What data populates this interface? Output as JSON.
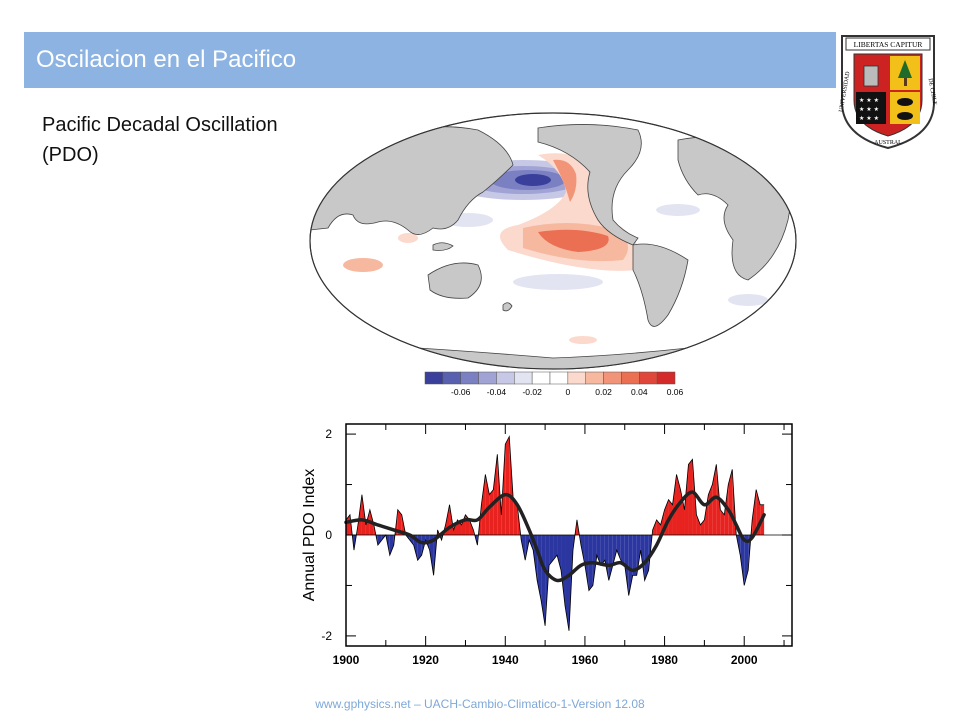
{
  "slide": {
    "title": "Oscilacion en el Pacifico",
    "subtitle": "Pacific Decadal Oscillation (PDO)",
    "footer": "www.gphysics.net – UACH-Cambio-Climatico-1-Version 12.08"
  },
  "logo": {
    "banner_top": "LIBERTAS CAPITUR",
    "left_text": "UNIVERSIDAD",
    "right_text": "DE CHILE",
    "bottom_text": "AUSTRAL"
  },
  "colors": {
    "title_bar": "#8db3e2",
    "positive": "#e8231f",
    "negative": "#2b36a0",
    "land": "#c8c8c8",
    "smooth_line": "#222222"
  },
  "colorbar": {
    "labels": [
      "-0.06",
      "-0.04",
      "-0.02",
      "0",
      "0.02",
      "0.04",
      "0.06"
    ],
    "colors": [
      "#3a3f9c",
      "#5a60b0",
      "#7b80c2",
      "#a0a3d4",
      "#c6c8e6",
      "#e3e4f2",
      "#ffffff",
      "#ffffff",
      "#fbd9cc",
      "#f7b8a0",
      "#f19478",
      "#ea6f53",
      "#e0473a",
      "#d42a2a"
    ]
  },
  "chart_data": {
    "type": "area",
    "ylabel": "Annual PDO Index",
    "xlabel": "",
    "xlim": [
      1900,
      2012
    ],
    "ylim": [
      -2.2,
      2.2
    ],
    "xticks": [
      1900,
      1920,
      1940,
      1960,
      1980,
      2000
    ],
    "yticks": [
      -2,
      0,
      2
    ],
    "series": [
      {
        "values": [
          [
            1900,
            0.3
          ],
          [
            1901,
            0.4
          ],
          [
            1902,
            -0.3
          ],
          [
            1903,
            0.2
          ],
          [
            1904,
            0.8
          ],
          [
            1905,
            0.2
          ],
          [
            1906,
            0.5
          ],
          [
            1907,
            0.2
          ],
          [
            1908,
            -0.2
          ],
          [
            1909,
            -0.1
          ],
          [
            1910,
            0.0
          ],
          [
            1911,
            -0.4
          ],
          [
            1912,
            -0.2
          ],
          [
            1913,
            0.5
          ],
          [
            1914,
            0.4
          ],
          [
            1915,
            0.0
          ],
          [
            1916,
            -0.1
          ],
          [
            1917,
            -0.2
          ],
          [
            1918,
            -0.5
          ],
          [
            1919,
            -0.4
          ],
          [
            1920,
            -0.1
          ],
          [
            1921,
            -0.3
          ],
          [
            1922,
            -0.8
          ],
          [
            1923,
            0.1
          ],
          [
            1924,
            -0.1
          ],
          [
            1925,
            0.2
          ],
          [
            1926,
            0.6
          ],
          [
            1927,
            0.1
          ],
          [
            1928,
            0.3
          ],
          [
            1929,
            0.2
          ],
          [
            1930,
            0.4
          ],
          [
            1931,
            0.3
          ],
          [
            1932,
            0.1
          ],
          [
            1933,
            -0.2
          ],
          [
            1934,
            0.6
          ],
          [
            1935,
            1.2
          ],
          [
            1936,
            0.8
          ],
          [
            1937,
            0.9
          ],
          [
            1938,
            1.6
          ],
          [
            1939,
            0.4
          ],
          [
            1940,
            1.8
          ],
          [
            1941,
            1.95
          ],
          [
            1942,
            0.7
          ],
          [
            1943,
            0.6
          ],
          [
            1944,
            -0.1
          ],
          [
            1945,
            -0.5
          ],
          [
            1946,
            -0.1
          ],
          [
            1947,
            -0.3
          ],
          [
            1948,
            -0.9
          ],
          [
            1949,
            -1.3
          ],
          [
            1950,
            -1.8
          ],
          [
            1951,
            -0.6
          ],
          [
            1952,
            -0.5
          ],
          [
            1953,
            -0.4
          ],
          [
            1954,
            -0.7
          ],
          [
            1955,
            -1.4
          ],
          [
            1956,
            -1.9
          ],
          [
            1957,
            -0.3
          ],
          [
            1958,
            0.3
          ],
          [
            1959,
            -0.2
          ],
          [
            1960,
            -0.6
          ],
          [
            1961,
            -1.1
          ],
          [
            1962,
            -1.0
          ],
          [
            1963,
            -0.4
          ],
          [
            1964,
            -0.6
          ],
          [
            1965,
            -0.5
          ],
          [
            1966,
            -0.9
          ],
          [
            1967,
            -0.6
          ],
          [
            1968,
            -0.3
          ],
          [
            1969,
            -0.5
          ],
          [
            1970,
            -0.6
          ],
          [
            1971,
            -1.2
          ],
          [
            1972,
            -0.8
          ],
          [
            1973,
            -0.8
          ],
          [
            1974,
            -0.3
          ],
          [
            1975,
            -0.9
          ],
          [
            1976,
            -0.7
          ],
          [
            1977,
            0.1
          ],
          [
            1978,
            0.3
          ],
          [
            1979,
            0.2
          ],
          [
            1980,
            0.5
          ],
          [
            1981,
            0.7
          ],
          [
            1982,
            0.6
          ],
          [
            1983,
            1.2
          ],
          [
            1984,
            0.9
          ],
          [
            1985,
            0.5
          ],
          [
            1986,
            1.4
          ],
          [
            1987,
            1.5
          ],
          [
            1988,
            0.4
          ],
          [
            1989,
            0.2
          ],
          [
            1990,
            0.3
          ],
          [
            1991,
            0.8
          ],
          [
            1992,
            1.0
          ],
          [
            1993,
            1.4
          ],
          [
            1994,
            0.5
          ],
          [
            1995,
            0.4
          ],
          [
            1996,
            1.0
          ],
          [
            1997,
            1.3
          ],
          [
            1998,
            0.0
          ],
          [
            1999,
            -0.4
          ],
          [
            2000,
            -1.0
          ],
          [
            2001,
            -0.7
          ],
          [
            2002,
            0.3
          ],
          [
            2003,
            0.9
          ],
          [
            2004,
            0.6
          ],
          [
            2005,
            0.6
          ]
        ]
      }
    ],
    "smoothed": [
      [
        1900,
        0.25
      ],
      [
        1904,
        0.3
      ],
      [
        1908,
        0.2
      ],
      [
        1912,
        0.1
      ],
      [
        1916,
        0.0
      ],
      [
        1919,
        -0.15
      ],
      [
        1922,
        -0.1
      ],
      [
        1926,
        0.15
      ],
      [
        1930,
        0.3
      ],
      [
        1933,
        0.3
      ],
      [
        1936,
        0.55
      ],
      [
        1940,
        0.8
      ],
      [
        1943,
        0.6
      ],
      [
        1946,
        0.1
      ],
      [
        1948,
        -0.3
      ],
      [
        1950,
        -0.7
      ],
      [
        1953,
        -0.9
      ],
      [
        1956,
        -0.8
      ],
      [
        1959,
        -0.6
      ],
      [
        1962,
        -0.55
      ],
      [
        1966,
        -0.6
      ],
      [
        1969,
        -0.55
      ],
      [
        1972,
        -0.7
      ],
      [
        1975,
        -0.55
      ],
      [
        1978,
        -0.2
      ],
      [
        1981,
        0.3
      ],
      [
        1984,
        0.65
      ],
      [
        1987,
        0.85
      ],
      [
        1990,
        0.6
      ],
      [
        1993,
        0.75
      ],
      [
        1996,
        0.5
      ],
      [
        1998,
        0.2
      ],
      [
        2000,
        -0.1
      ],
      [
        2002,
        -0.05
      ],
      [
        2005,
        0.4
      ]
    ]
  }
}
